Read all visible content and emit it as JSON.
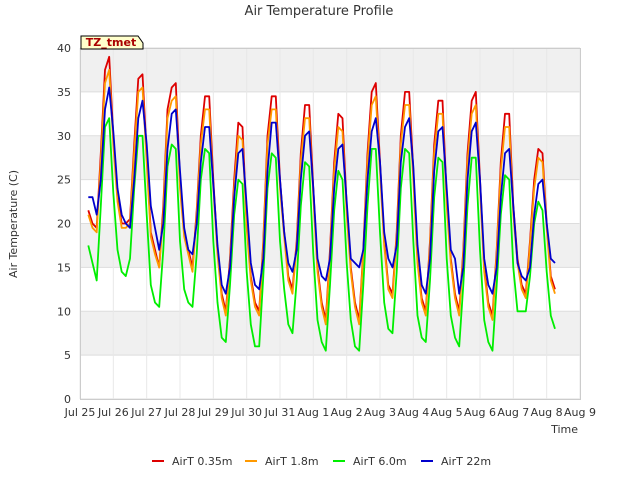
{
  "chart_data": {
    "type": "line",
    "title": "Air Temperature Profile",
    "xlabel": "Time",
    "ylabel": "Air Temperature (C)",
    "ylim": [
      0,
      40
    ],
    "yticks": [
      0,
      5,
      10,
      15,
      20,
      25,
      30,
      35,
      40
    ],
    "xlim": [
      "2024-07-25",
      "2024-08-09"
    ],
    "xticks": [
      "Jul 25",
      "Jul 26",
      "Jul 27",
      "Jul 28",
      "Jul 29",
      "Jul 30",
      "Jul 31",
      "Aug 1",
      "Aug 2",
      "Aug 3",
      "Aug 4",
      "Aug 5",
      "Aug 6",
      "Aug 7",
      "Aug 8",
      "Aug 9"
    ],
    "grid": true,
    "legend": "bottom",
    "site_label": "TZ_tmet",
    "time_step_days": 0.125,
    "x_start": "2024-07-25T06:00",
    "series": [
      {
        "name": "AirT 0.35m",
        "color": "#dd0000",
        "values": [
          21.5,
          20.0,
          19.5,
          28.0,
          37.5,
          39.0,
          30.0,
          23.0,
          20.0,
          20.0,
          20.5,
          29.0,
          36.5,
          37.0,
          28.0,
          19.0,
          17.0,
          15.0,
          22.0,
          33.0,
          35.5,
          36.0,
          25.0,
          19.0,
          17.0,
          15.0,
          21.5,
          30.0,
          34.5,
          34.5,
          25.0,
          17.0,
          12.0,
          10.0,
          16.0,
          25.0,
          31.5,
          31.0,
          20.0,
          14.0,
          11.0,
          10.0,
          18.0,
          30.0,
          34.5,
          34.5,
          25.0,
          19.0,
          14.0,
          12.5,
          18.0,
          28.0,
          33.5,
          33.5,
          24.0,
          15.0,
          11.0,
          9.0,
          17.0,
          27.0,
          32.5,
          32.0,
          22.0,
          15.0,
          11.0,
          9.0,
          17.0,
          28.0,
          35.0,
          36.0,
          27.0,
          18.0,
          13.0,
          12.0,
          19.0,
          30.0,
          35.0,
          35.0,
          26.0,
          16.0,
          11.5,
          10.0,
          18.0,
          29.0,
          34.0,
          34.0,
          23.0,
          16.0,
          12.0,
          10.0,
          17.0,
          28.0,
          34.0,
          35.0,
          25.0,
          15.0,
          11.0,
          9.5,
          17.0,
          27.0,
          32.5,
          32.5,
          22.0,
          16.0,
          13.0,
          12.0,
          18.0,
          25.0,
          28.5,
          28.0,
          20.0,
          14.0,
          12.5
        ]
      },
      {
        "name": "AirT 1.8m",
        "color": "#ff9900",
        "values": [
          21.0,
          19.5,
          19.0,
          27.0,
          36.0,
          37.5,
          29.0,
          22.5,
          19.5,
          19.5,
          20.0,
          28.0,
          35.0,
          35.5,
          27.0,
          18.5,
          16.5,
          15.0,
          21.0,
          32.0,
          34.0,
          34.5,
          24.0,
          18.5,
          16.5,
          14.5,
          21.0,
          29.0,
          33.0,
          33.0,
          24.0,
          16.5,
          11.5,
          9.5,
          15.5,
          24.0,
          30.0,
          29.5,
          19.5,
          13.5,
          10.5,
          9.5,
          17.5,
          29.0,
          33.0,
          33.0,
          24.0,
          18.5,
          13.5,
          12.0,
          17.5,
          27.0,
          32.0,
          32.0,
          23.0,
          14.5,
          10.5,
          8.5,
          16.5,
          26.0,
          31.0,
          30.5,
          21.0,
          14.5,
          10.5,
          8.5,
          16.5,
          27.0,
          33.5,
          34.5,
          26.0,
          17.5,
          12.5,
          11.5,
          18.5,
          29.0,
          33.5,
          33.5,
          25.0,
          15.5,
          11.0,
          9.5,
          17.5,
          28.0,
          32.5,
          32.5,
          22.0,
          15.5,
          11.5,
          9.5,
          16.5,
          27.0,
          32.5,
          33.5,
          24.0,
          14.5,
          10.5,
          9.0,
          16.5,
          26.0,
          31.0,
          31.0,
          21.0,
          15.5,
          12.5,
          11.5,
          17.5,
          24.0,
          27.5,
          27.0,
          19.5,
          13.5,
          12.0
        ]
      },
      {
        "name": "AirT 6.0m",
        "color": "#00ee00",
        "values": [
          17.5,
          15.5,
          13.5,
          22.0,
          31.0,
          32.0,
          23.5,
          17.0,
          14.5,
          14.0,
          16.0,
          24.0,
          30.0,
          30.0,
          21.0,
          13.0,
          11.0,
          10.5,
          17.0,
          26.5,
          29.0,
          28.5,
          18.0,
          12.5,
          11.0,
          10.5,
          16.5,
          25.0,
          28.5,
          28.0,
          18.0,
          11.0,
          7.0,
          6.5,
          13.0,
          21.0,
          25.0,
          24.5,
          14.5,
          8.5,
          6.0,
          6.0,
          14.0,
          24.0,
          28.0,
          27.5,
          18.0,
          12.5,
          8.5,
          7.5,
          13.5,
          22.0,
          27.0,
          26.5,
          16.5,
          9.0,
          6.5,
          5.5,
          13.0,
          21.5,
          26.0,
          25.0,
          15.5,
          9.0,
          6.0,
          5.5,
          13.0,
          22.0,
          28.5,
          28.5,
          19.0,
          11.0,
          8.0,
          7.5,
          14.5,
          24.0,
          28.5,
          28.0,
          18.0,
          9.5,
          7.0,
          6.5,
          13.5,
          23.0,
          27.5,
          27.0,
          16.0,
          9.5,
          7.0,
          6.0,
          13.0,
          22.0,
          27.5,
          27.5,
          17.0,
          9.0,
          6.5,
          5.5,
          13.0,
          21.0,
          25.5,
          25.0,
          15.0,
          10.0,
          10.0,
          10.0,
          14.0,
          20.0,
          22.5,
          21.5,
          14.5,
          9.5,
          8.0
        ]
      },
      {
        "name": "AirT 22m",
        "color": "#0000cc",
        "values": [
          23.0,
          23.0,
          21.0,
          25.0,
          33.0,
          35.5,
          30.5,
          24.0,
          21.0,
          20.0,
          19.5,
          25.0,
          32.0,
          34.0,
          29.0,
          22.0,
          19.5,
          17.0,
          20.0,
          28.5,
          32.5,
          33.0,
          26.0,
          19.5,
          17.0,
          16.5,
          20.0,
          27.0,
          31.0,
          31.0,
          24.5,
          17.5,
          13.0,
          12.0,
          15.0,
          23.0,
          28.0,
          28.5,
          22.0,
          15.5,
          13.0,
          12.5,
          16.0,
          26.0,
          31.5,
          31.5,
          25.0,
          19.0,
          15.5,
          14.5,
          17.0,
          25.0,
          30.0,
          30.5,
          24.0,
          16.0,
          14.0,
          13.5,
          16.0,
          24.0,
          28.5,
          29.0,
          22.5,
          16.0,
          15.5,
          15.0,
          17.0,
          25.0,
          30.5,
          32.0,
          27.0,
          19.0,
          16.0,
          15.0,
          17.5,
          27.0,
          31.0,
          32.0,
          26.5,
          17.5,
          13.0,
          12.0,
          16.0,
          26.0,
          30.5,
          31.0,
          24.0,
          17.0,
          16.0,
          12.0,
          15.0,
          25.0,
          30.5,
          31.5,
          25.0,
          16.0,
          13.0,
          12.0,
          15.0,
          23.0,
          28.0,
          28.5,
          22.0,
          15.5,
          14.0,
          13.5,
          15.0,
          21.0,
          24.5,
          25.0,
          20.0,
          16.0,
          15.5
        ]
      }
    ]
  }
}
